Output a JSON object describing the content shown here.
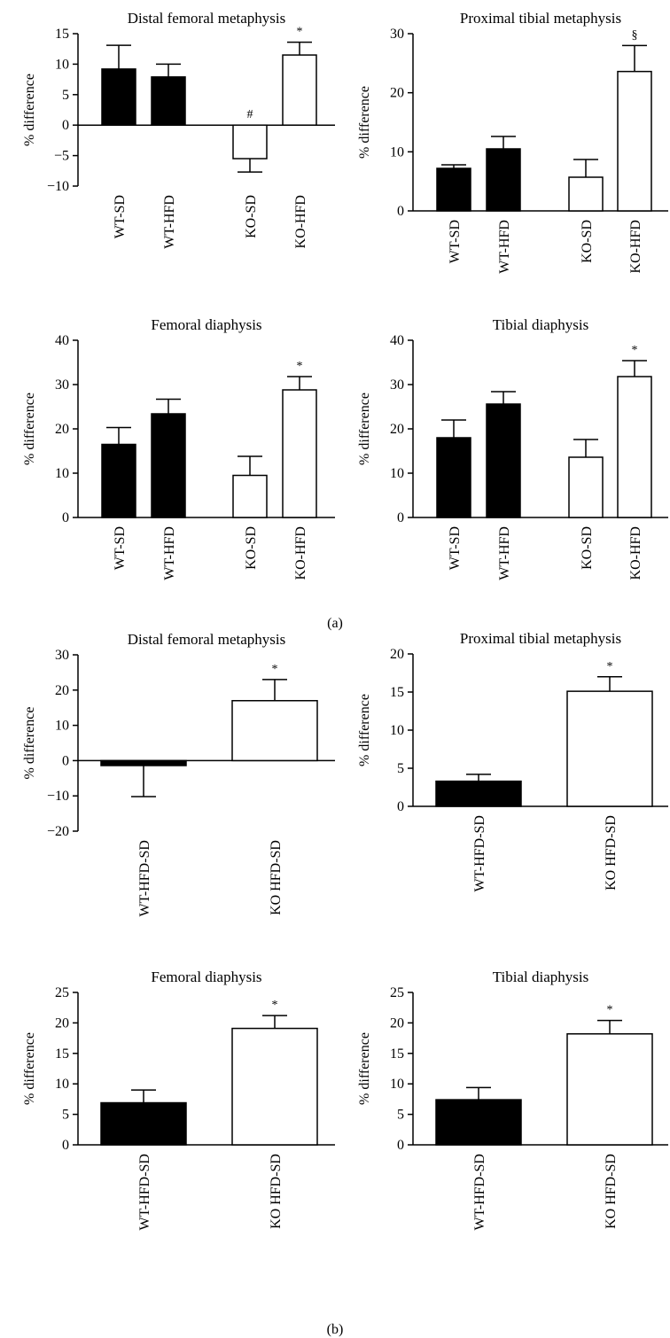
{
  "figure": {
    "panel_labels": [
      "(a)",
      "(b)"
    ]
  },
  "colors": {
    "WT": "#000000",
    "KO": "#ffffff",
    "axis": "#000000"
  },
  "chart_data": [
    {
      "type": "bar",
      "panel": "(a)",
      "title": "Distal femoral metaphysis",
      "ylabel": "% difference",
      "xlabel": "",
      "ylim": [
        -10,
        15
      ],
      "yticks": [
        -10,
        -5,
        0,
        5,
        10,
        15
      ],
      "categories": [
        "WT-SD",
        "WT-HFD",
        "KO-SD",
        "KO-HFD"
      ],
      "values": [
        9.2,
        7.9,
        -5.5,
        11.5
      ],
      "errors": [
        3.9,
        2.1,
        2.2,
        2.1
      ],
      "fills": [
        "WT",
        "WT",
        "KO",
        "KO"
      ],
      "annotations": [
        "",
        "",
        "#",
        "*"
      ],
      "grid": false
    },
    {
      "type": "bar",
      "panel": "(a)",
      "title": "Proximal tibial metaphysis",
      "ylabel": "% difference",
      "xlabel": "",
      "ylim": [
        0,
        30
      ],
      "yticks": [
        0,
        10,
        20,
        30
      ],
      "categories": [
        "WT-SD",
        "WT-HFD",
        "KO-SD",
        "KO-HFD"
      ],
      "values": [
        7.2,
        10.5,
        5.7,
        23.6
      ],
      "errors": [
        0.6,
        2.1,
        3.0,
        4.4
      ],
      "fills": [
        "WT",
        "WT",
        "KO",
        "KO"
      ],
      "annotations": [
        "",
        "",
        "",
        "§"
      ],
      "grid": false
    },
    {
      "type": "bar",
      "panel": "(a)",
      "title": "Femoral diaphysis",
      "ylabel": "% difference",
      "xlabel": "",
      "ylim": [
        0,
        40
      ],
      "yticks": [
        0,
        10,
        20,
        30,
        40
      ],
      "categories": [
        "WT-SD",
        "WT-HFD",
        "KO-SD",
        "KO-HFD"
      ],
      "values": [
        16.5,
        23.4,
        9.5,
        28.8
      ],
      "errors": [
        3.8,
        3.3,
        4.3,
        3.0
      ],
      "fills": [
        "WT",
        "WT",
        "KO",
        "KO"
      ],
      "annotations": [
        "",
        "",
        "",
        "*"
      ],
      "grid": false
    },
    {
      "type": "bar",
      "panel": "(a)",
      "title": "Tibial diaphysis",
      "ylabel": "% difference",
      "xlabel": "",
      "ylim": [
        0,
        40
      ],
      "yticks": [
        0,
        10,
        20,
        30,
        40
      ],
      "categories": [
        "WT-SD",
        "WT-HFD",
        "KO-SD",
        "KO-HFD"
      ],
      "values": [
        18.0,
        25.6,
        13.6,
        31.8
      ],
      "errors": [
        4.0,
        2.8,
        4.0,
        3.6
      ],
      "fills": [
        "WT",
        "WT",
        "KO",
        "KO"
      ],
      "annotations": [
        "",
        "",
        "",
        "*"
      ],
      "grid": false
    },
    {
      "type": "bar",
      "panel": "(b)",
      "title": "Distal femoral metaphysis",
      "ylabel": "% difference",
      "xlabel": "",
      "ylim": [
        -20,
        30
      ],
      "yticks": [
        -20,
        -10,
        0,
        10,
        20,
        30
      ],
      "categories": [
        "WT-HFD-SD",
        "KO HFD-SD"
      ],
      "values": [
        -1.4,
        17.0
      ],
      "errors": [
        8.8,
        6.0
      ],
      "fills": [
        "WT",
        "KO"
      ],
      "annotations": [
        "",
        "*"
      ],
      "grid": false
    },
    {
      "type": "bar",
      "panel": "(b)",
      "title": "Proximal tibial metaphysis",
      "ylabel": "% difference",
      "xlabel": "",
      "ylim": [
        0,
        20
      ],
      "yticks": [
        0,
        5,
        10,
        15,
        20
      ],
      "categories": [
        "WT-HFD-SD",
        "KO HFD-SD"
      ],
      "values": [
        3.3,
        15.1
      ],
      "errors": [
        0.9,
        1.9
      ],
      "fills": [
        "WT",
        "KO"
      ],
      "annotations": [
        "",
        "*"
      ],
      "grid": false
    },
    {
      "type": "bar",
      "panel": "(b)",
      "title": "Femoral diaphysis",
      "ylabel": "% difference",
      "xlabel": "",
      "ylim": [
        0,
        25
      ],
      "yticks": [
        0,
        5,
        10,
        15,
        20,
        25
      ],
      "categories": [
        "WT-HFD-SD",
        "KO HFD-SD"
      ],
      "values": [
        6.9,
        19.1
      ],
      "errors": [
        2.1,
        2.1
      ],
      "fills": [
        "WT",
        "KO"
      ],
      "annotations": [
        "",
        "*"
      ],
      "grid": false
    },
    {
      "type": "bar",
      "panel": "(b)",
      "title": "Tibial diaphysis",
      "ylabel": "% difference",
      "xlabel": "",
      "ylim": [
        0,
        25
      ],
      "yticks": [
        0,
        5,
        10,
        15,
        20,
        25
      ],
      "categories": [
        "WT-HFD-SD",
        "KO HFD-SD"
      ],
      "values": [
        7.4,
        18.2
      ],
      "errors": [
        2.0,
        2.2
      ],
      "fills": [
        "WT",
        "KO"
      ],
      "annotations": [
        "",
        "*"
      ],
      "grid": false
    }
  ]
}
